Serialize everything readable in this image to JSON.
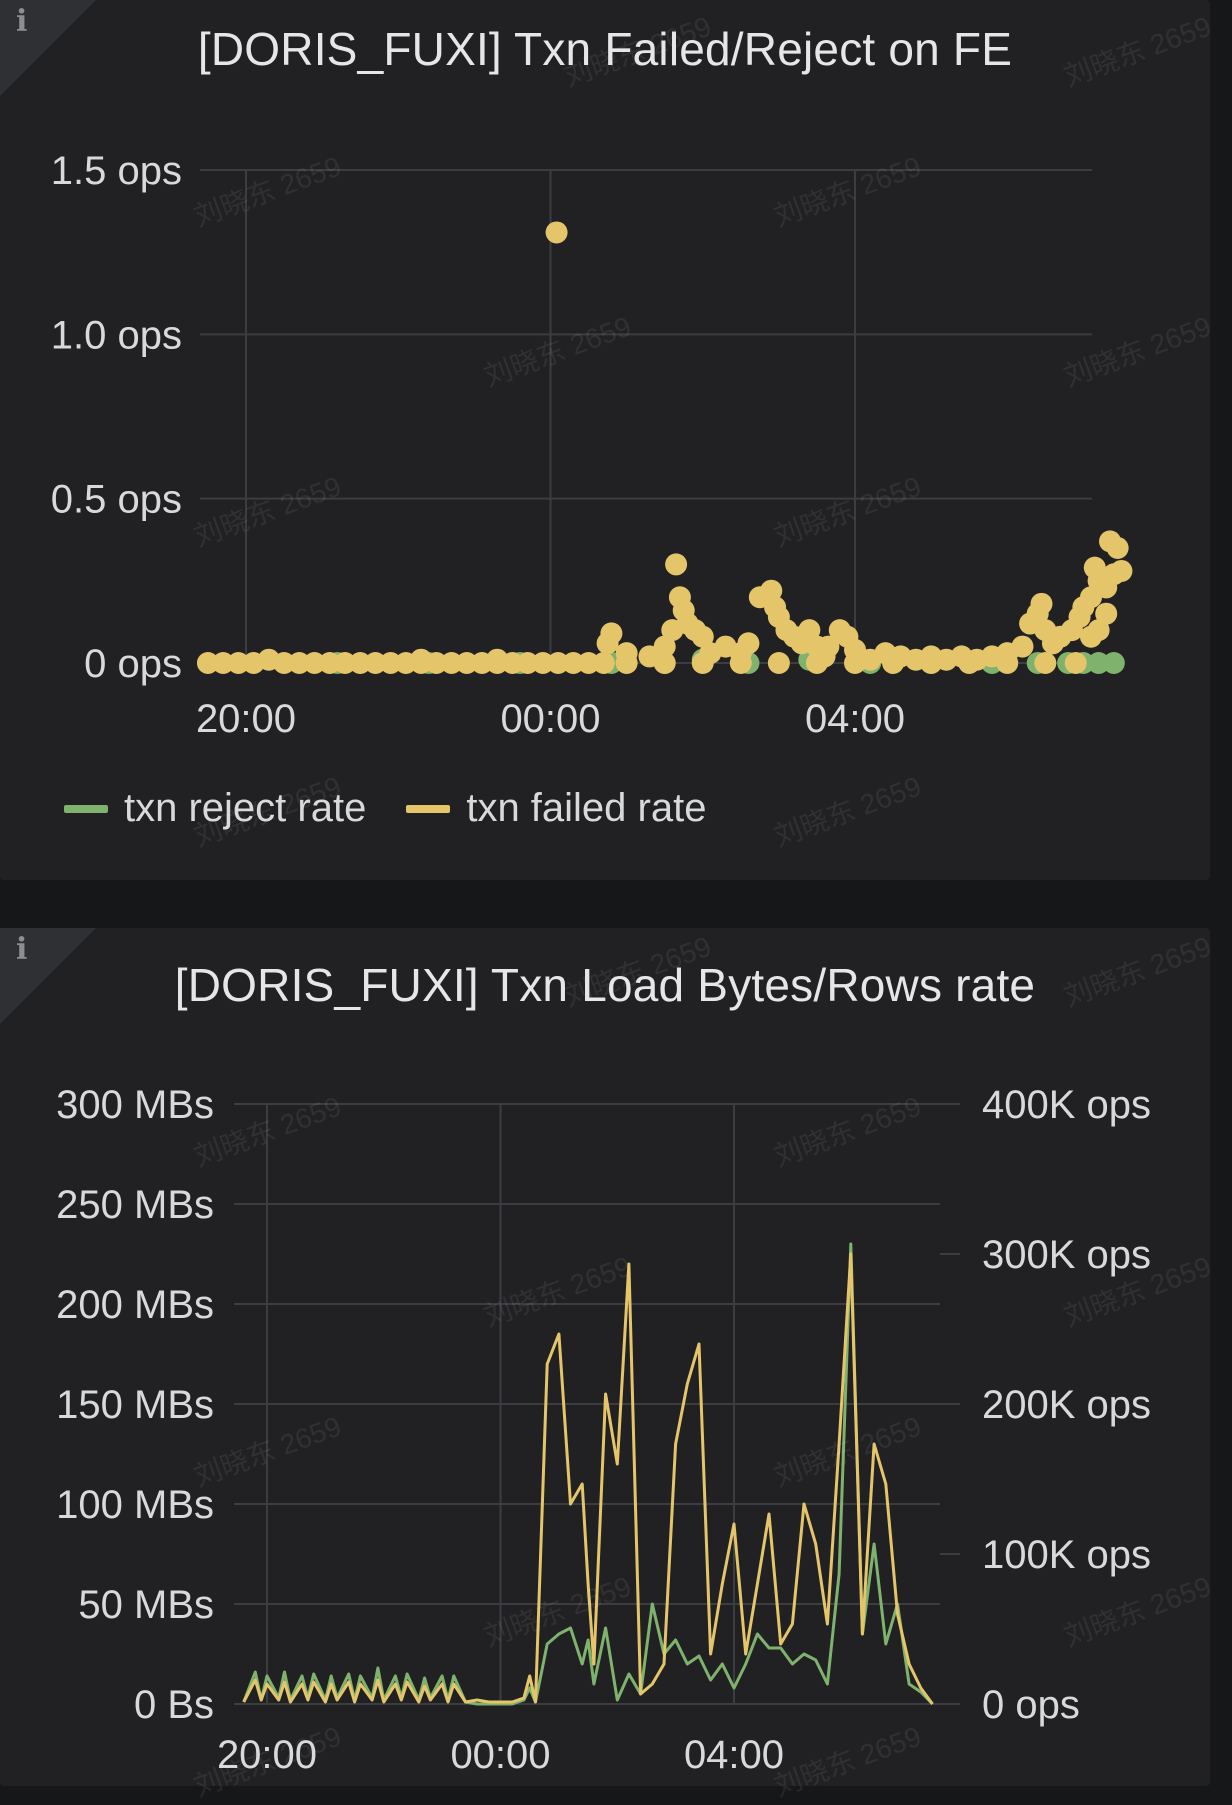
{
  "colors": {
    "reject": "#7eb26d",
    "failed": "#e5c56a",
    "grid": "#3c3d41",
    "text": "#d8d9da"
  },
  "icons": {
    "info": "info-icon"
  },
  "chart_data": [
    {
      "type": "scatter",
      "title": "[DORIS_FUXI] Txn Failed/Reject on FE",
      "x_axis": {
        "type": "time",
        "tick_labels": [
          "20:00",
          "00:00",
          "04:00"
        ],
        "tick_values": [
          0,
          4,
          8
        ],
        "range": [
          -0.6,
          11.5
        ]
      },
      "y_axis": {
        "range": [
          0,
          1.5
        ],
        "ticks": [
          0,
          0.5,
          1.0,
          1.5
        ],
        "tick_labels": [
          "0 ops",
          "0.5 ops",
          "1.0 ops",
          "1.5 ops"
        ]
      },
      "grid": true,
      "legend": {
        "placement": "bottom-left",
        "entries": [
          "txn reject rate",
          "txn failed rate"
        ]
      },
      "series": [
        {
          "name": "txn reject rate",
          "color": "#7eb26d",
          "points": [
            [
              1.2,
              0
            ],
            [
              2.4,
              0
            ],
            [
              3.6,
              0
            ],
            [
              4.8,
              0
            ],
            [
              5.5,
              0
            ],
            [
              6.0,
              0.01
            ],
            [
              6.6,
              0
            ],
            [
              7.4,
              0.01
            ],
            [
              8.2,
              0
            ],
            [
              9.0,
              0
            ],
            [
              9.8,
              0
            ],
            [
              10.4,
              0
            ],
            [
              10.8,
              0
            ],
            [
              11.0,
              0
            ],
            [
              11.2,
              0
            ],
            [
              11.4,
              0
            ]
          ]
        },
        {
          "name": "txn failed rate",
          "color": "#e5c56a",
          "points": [
            [
              -0.5,
              0
            ],
            [
              -0.3,
              0
            ],
            [
              -0.1,
              0
            ],
            [
              0.1,
              0
            ],
            [
              0.3,
              0.01
            ],
            [
              0.5,
              0
            ],
            [
              0.7,
              0
            ],
            [
              0.9,
              0
            ],
            [
              1.1,
              0
            ],
            [
              1.3,
              0
            ],
            [
              1.5,
              0
            ],
            [
              1.7,
              0
            ],
            [
              1.9,
              0
            ],
            [
              2.1,
              0
            ],
            [
              2.3,
              0
            ],
            [
              2.5,
              0
            ],
            [
              2.7,
              0
            ],
            [
              2.9,
              0
            ],
            [
              3.1,
              0
            ],
            [
              3.3,
              0
            ],
            [
              3.5,
              0
            ],
            [
              3.7,
              0
            ],
            [
              3.9,
              0
            ],
            [
              4.1,
              0
            ],
            [
              4.3,
              0
            ],
            [
              4.5,
              0
            ],
            [
              4.7,
              0
            ],
            [
              2.3,
              0.01
            ],
            [
              3.3,
              0.01
            ],
            [
              4.08,
              1.31
            ],
            [
              4.75,
              0.06
            ],
            [
              4.8,
              0.09
            ],
            [
              5.0,
              0.03
            ],
            [
              5.3,
              0.02
            ],
            [
              5.5,
              0.05
            ],
            [
              5.6,
              0.1
            ],
            [
              5.65,
              0.3
            ],
            [
              5.7,
              0.2
            ],
            [
              5.75,
              0.16
            ],
            [
              5.8,
              0.12
            ],
            [
              5.9,
              0.1
            ],
            [
              6.0,
              0.08
            ],
            [
              6.1,
              0.03
            ],
            [
              6.3,
              0.05
            ],
            [
              6.5,
              0.03
            ],
            [
              6.6,
              0.06
            ],
            [
              6.75,
              0.2
            ],
            [
              6.9,
              0.22
            ],
            [
              6.95,
              0.17
            ],
            [
              7.0,
              0.14
            ],
            [
              7.1,
              0.1
            ],
            [
              7.2,
              0.08
            ],
            [
              7.3,
              0.06
            ],
            [
              7.4,
              0.1
            ],
            [
              7.5,
              0.05
            ],
            [
              7.6,
              0.02
            ],
            [
              7.65,
              0.05
            ],
            [
              7.8,
              0.1
            ],
            [
              7.9,
              0.08
            ],
            [
              8.0,
              0.04
            ],
            [
              8.2,
              0.01
            ],
            [
              8.4,
              0.03
            ],
            [
              8.6,
              0.02
            ],
            [
              8.8,
              0.01
            ],
            [
              9.0,
              0.02
            ],
            [
              9.2,
              0.01
            ],
            [
              9.4,
              0.02
            ],
            [
              9.6,
              0.01
            ],
            [
              9.8,
              0.02
            ],
            [
              10.0,
              0.03
            ],
            [
              10.2,
              0.05
            ],
            [
              10.3,
              0.12
            ],
            [
              10.4,
              0.15
            ],
            [
              10.45,
              0.18
            ],
            [
              10.5,
              0.1
            ],
            [
              10.6,
              0.06
            ],
            [
              10.7,
              0.08
            ],
            [
              10.85,
              0.1
            ],
            [
              10.95,
              0.14
            ],
            [
              11.0,
              0.17
            ],
            [
              11.1,
              0.2
            ],
            [
              11.15,
              0.29
            ],
            [
              11.2,
              0.25
            ],
            [
              11.3,
              0.23
            ],
            [
              11.35,
              0.37
            ],
            [
              11.45,
              0.35
            ],
            [
              11.4,
              0.27
            ],
            [
              11.5,
              0.28
            ],
            [
              11.3,
              0.15
            ],
            [
              11.2,
              0.1
            ],
            [
              11.1,
              0.08
            ],
            [
              5.0,
              0
            ],
            [
              5.5,
              0
            ],
            [
              6.0,
              0
            ],
            [
              6.5,
              0
            ],
            [
              7.0,
              0
            ],
            [
              7.5,
              0
            ],
            [
              8.0,
              0
            ],
            [
              8.5,
              0
            ],
            [
              9.0,
              0
            ],
            [
              9.5,
              0
            ],
            [
              10.0,
              0
            ],
            [
              10.5,
              0
            ],
            [
              10.9,
              0
            ]
          ]
        }
      ]
    },
    {
      "type": "line",
      "title": "[DORIS_FUXI] Txn Load Bytes/Rows rate",
      "x_axis": {
        "type": "time",
        "tick_labels": [
          "20:00",
          "00:00",
          "04:00"
        ],
        "tick_values": [
          0,
          4,
          8
        ],
        "range": [
          -0.5,
          11.5
        ]
      },
      "y_axis_left": {
        "range": [
          0,
          300
        ],
        "ticks": [
          0,
          50,
          100,
          150,
          200,
          250,
          300
        ],
        "tick_labels": [
          "0 Bs",
          "50 MBs",
          "100 MBs",
          "150 MBs",
          "200 MBs",
          "250 MBs",
          "300 MBs"
        ]
      },
      "y_axis_right": {
        "range": [
          0,
          400
        ],
        "ticks": [
          0,
          100,
          200,
          300,
          400
        ],
        "tick_labels": [
          "0 ops",
          "100K ops",
          "200K ops",
          "300K ops",
          "400K ops"
        ]
      },
      "grid": true,
      "legend": {
        "placement": "none",
        "entries": []
      },
      "series": [
        {
          "axis": "left",
          "color": "#7eb26d",
          "x": [
            -0.4,
            -0.2,
            -0.1,
            0,
            0.2,
            0.3,
            0.4,
            0.6,
            0.7,
            0.8,
            1.0,
            1.1,
            1.2,
            1.4,
            1.5,
            1.6,
            1.8,
            1.9,
            2.0,
            2.2,
            2.3,
            2.4,
            2.6,
            2.7,
            2.8,
            3.0,
            3.1,
            3.2,
            3.4,
            3.6,
            3.8,
            4.0,
            4.2,
            4.4,
            4.5,
            4.6,
            4.8,
            5.0,
            5.2,
            5.4,
            5.5,
            5.6,
            5.8,
            6.0,
            6.2,
            6.4,
            6.6,
            6.8,
            7.0,
            7.2,
            7.4,
            7.6,
            7.8,
            8.0,
            8.2,
            8.4,
            8.6,
            8.8,
            9.0,
            9.2,
            9.4,
            9.6,
            9.8,
            10.0,
            10.2,
            10.4,
            10.6,
            10.8,
            11.0,
            11.2,
            11.4
          ],
          "values": [
            1,
            16,
            2,
            14,
            3,
            16,
            2,
            14,
            3,
            15,
            2,
            14,
            3,
            15,
            2,
            14,
            3,
            18,
            2,
            14,
            3,
            15,
            2,
            13,
            3,
            14,
            2,
            14,
            1,
            0,
            0,
            0,
            0,
            2,
            8,
            1,
            30,
            35,
            38,
            20,
            32,
            10,
            38,
            2,
            15,
            5,
            50,
            25,
            32,
            20,
            24,
            12,
            20,
            8,
            20,
            35,
            28,
            28,
            20,
            25,
            22,
            10,
            65,
            230,
            35,
            80,
            30,
            50,
            10,
            6,
            0
          ]
        },
        {
          "axis": "left",
          "color": "#e5c56a",
          "x": [
            -0.4,
            -0.2,
            -0.1,
            0,
            0.2,
            0.3,
            0.4,
            0.6,
            0.7,
            0.8,
            1.0,
            1.1,
            1.2,
            1.4,
            1.5,
            1.6,
            1.8,
            1.9,
            2.0,
            2.2,
            2.3,
            2.4,
            2.6,
            2.7,
            2.8,
            3.0,
            3.1,
            3.2,
            3.4,
            3.6,
            3.8,
            4.0,
            4.2,
            4.4,
            4.5,
            4.6,
            4.8,
            5.0,
            5.2,
            5.4,
            5.5,
            5.6,
            5.8,
            6.0,
            6.2,
            6.4,
            6.6,
            6.8,
            7.0,
            7.2,
            7.4,
            7.6,
            7.8,
            8.0,
            8.2,
            8.4,
            8.6,
            8.8,
            9.0,
            9.2,
            9.4,
            9.6,
            9.8,
            10.0,
            10.2,
            10.4,
            10.6,
            10.8,
            11.0,
            11.2,
            11.4
          ],
          "values": [
            1,
            12,
            2,
            10,
            2,
            11,
            1,
            10,
            2,
            11,
            1,
            10,
            2,
            11,
            1,
            10,
            2,
            12,
            1,
            10,
            2,
            11,
            1,
            9,
            2,
            10,
            1,
            10,
            1,
            2,
            1,
            1,
            1,
            3,
            14,
            1,
            170,
            185,
            100,
            110,
            60,
            20,
            155,
            120,
            220,
            5,
            10,
            20,
            130,
            160,
            180,
            25,
            60,
            90,
            25,
            60,
            95,
            30,
            40,
            100,
            80,
            40,
            130,
            225,
            35,
            130,
            110,
            45,
            20,
            8,
            0
          ]
        }
      ]
    }
  ],
  "watermark": "刘晓东 2659"
}
